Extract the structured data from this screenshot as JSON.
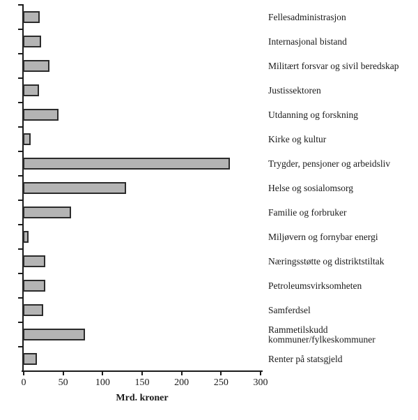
{
  "figure": {
    "background_color": "#ffffff",
    "axis_color": "#1a1a1a",
    "text_color": "#1a1a1a"
  },
  "chart_data": {
    "type": "bar",
    "orientation": "horizontal",
    "title": "",
    "xlabel": "Mrd. kroner",
    "ylabel": "",
    "xlim": [
      0,
      300
    ],
    "xticks": [
      0,
      50,
      100,
      150,
      200,
      250,
      300
    ],
    "grid": false,
    "legend": false,
    "bar_fill_color": "#b4b4b4",
    "bar_border_color": "#2b2b2b",
    "categories": [
      "Fellesadministrasjon",
      "Internasjonal bistand",
      "Militært forsvar og sivil beredskap",
      "Justissektoren",
      "Utdanning og forskning",
      "Kirke og kultur",
      "Trygder, pensjoner og arbeidsliv",
      "Helse og sosialomsorg",
      "Familie og forbruker",
      "Miljøvern og fornybar energi",
      "Næringsstøtte og distriktstiltak",
      "Petroleumsvirksomheten",
      "Samferdsel",
      "Rammetilskudd\nkommuner/fylkeskommuner",
      "Renter på statsgjeld"
    ],
    "values": [
      20,
      22,
      33,
      19,
      44,
      9,
      261,
      130,
      60,
      6,
      27,
      27,
      25,
      78,
      17
    ]
  }
}
